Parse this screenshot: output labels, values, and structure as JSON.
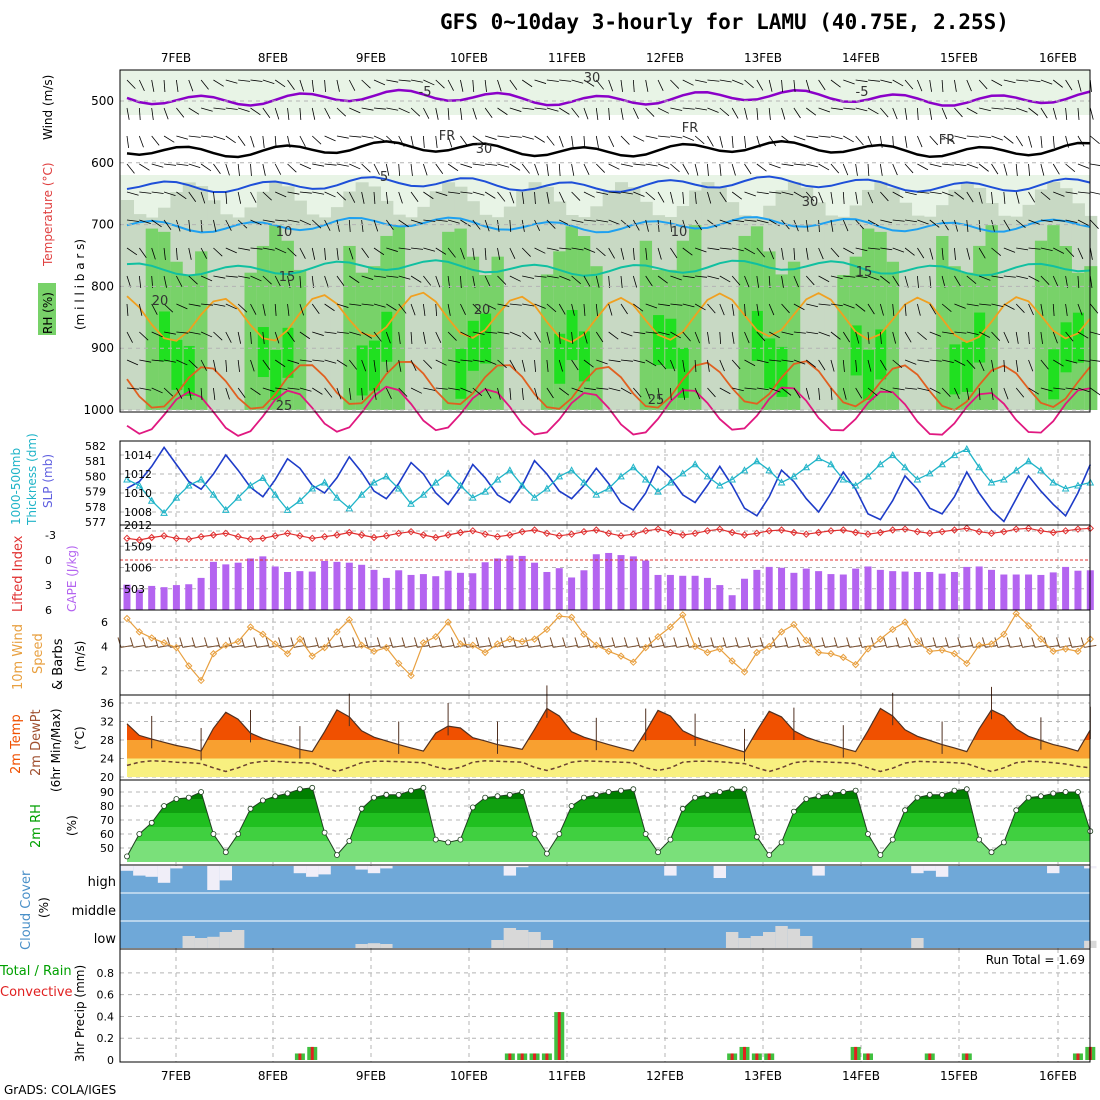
{
  "title": "GFS 0~10day 3-hourly for LAMU (40.75E, 2.25S)",
  "footer": "GrADS: COLA/IGES",
  "dates": [
    "7FEB",
    "8FEB",
    "9FEB",
    "10FEB",
    "11FEB",
    "12FEB",
    "13FEB",
    "14FEB",
    "15FEB",
    "16FEB"
  ],
  "colors": {
    "grid": "#b4b4b4",
    "rh_light": "#e8f4e6",
    "rh_mid": "#c8d9c4",
    "rh_dark": "#a9c8a5",
    "rh_green": "#78d269",
    "rh_bright": "#20e020",
    "t_m5": "#8a00c8",
    "t_fr": "#000000",
    "t_5": "#1e4fd8",
    "t_10": "#1ea0f0",
    "t_15": "#10c0a0",
    "t_20": "#f0a020",
    "t_25": "#e06020",
    "t_30": "#e01880",
    "slp": "#1e3cc8",
    "thick": "#20b4c8",
    "li": "#e03030",
    "cape": "#b464f0",
    "wind": "#e8a040",
    "barb": "#7a5030",
    "temp_top": "#f05000",
    "temp_mid": "#f8a030",
    "temp_low": "#f8f080",
    "dewpt": "#6a4030",
    "rh2m": "#00a000",
    "cloud_sky": "#6fa8d8",
    "cloud_gray": "#d8d8d8",
    "cloud_white": "#f0eef8",
    "precip_total": "#40c040",
    "precip_conv": "#e02020"
  },
  "panels": {
    "upper": {
      "ylabel_rh": "RH (%)",
      "ylabel_temp": "Temperature (°C)",
      "ylabel_wind": "Wind (m/s)",
      "ylabel_mb": "(m i l l i b a r s)",
      "levels": [
        "500",
        "600",
        "700",
        "800",
        "900",
        "1000"
      ],
      "contour_labels": [
        "-5",
        "-5",
        "FR",
        "FR",
        "FR",
        "5",
        "10",
        "10",
        "15",
        "15",
        "20",
        "20",
        "25",
        "25",
        "30",
        "30",
        "30"
      ]
    },
    "slp": {
      "ylabel_a": "1000-500mb",
      "ylabel_b": "Thickness (dm)",
      "ylabel_c": "SLP (mb)",
      "left_ticks": [
        "582",
        "581",
        "580",
        "579",
        "578",
        "577"
      ],
      "right_ticks": [
        "1014",
        "1012",
        "1010",
        "1008"
      ]
    },
    "cape": {
      "ylabel_a": "Lifted Index",
      "ylabel_b": "CAPE (J/kg)",
      "left_ticks": [
        "-3",
        "0",
        "3",
        "6"
      ],
      "right_ticks": [
        "2012",
        "1509",
        "1006",
        "503"
      ]
    },
    "wind": {
      "ylabel_a": "10m Wind",
      "ylabel_b": "Speed",
      "ylabel_c": "& Barbs",
      "unit": "(m/s)",
      "ticks": [
        "6",
        "4",
        "2"
      ]
    },
    "temp": {
      "ylabel_a": "2m Temp",
      "ylabel_b": "2m DewPt",
      "ylabel_c": "(6hr Min/Max)",
      "unit": "(°C)",
      "ticks": [
        "36",
        "32",
        "28",
        "24",
        "20"
      ]
    },
    "rh": {
      "ylabel": "2m RH",
      "unit": "(%)",
      "ticks": [
        "90",
        "80",
        "70",
        "60",
        "50"
      ]
    },
    "cloud": {
      "ylabel": "Cloud Cover",
      "unit": "(%)",
      "labels": [
        "high",
        "middle",
        "low"
      ]
    },
    "precip": {
      "ylabel_a": "Total / Rain",
      "ylabel_b": "Convective",
      "ylabel_c": "3hr Precip (mm)",
      "ticks": [
        "0.8",
        "0.6",
        "0.4",
        "0.2",
        "0"
      ],
      "run_total": "Run Total = 1.69"
    }
  },
  "chart_data": {
    "type": "line",
    "x_unit": "3-hourly time steps from 6FEB 12Z",
    "slp_mb": [
      1010.5,
      1011.2,
      1012.8,
      1014.8,
      1013.0,
      1011.2,
      1010.4,
      1012.0,
      1014.0,
      1012.4,
      1010.6,
      1009.6,
      1011.4,
      1013.6,
      1012.6,
      1010.8,
      1010.0,
      1011.6,
      1013.8,
      1012.2,
      1010.2,
      1009.4,
      1011.0,
      1013.2,
      1012.0,
      1010.0,
      1008.8,
      1010.6,
      1013.0,
      1011.6,
      1009.8,
      1009.0,
      1010.8,
      1013.4,
      1012.0,
      1010.2,
      1009.4,
      1010.8,
      1012.6,
      1011.0,
      1009.0,
      1008.2,
      1010.0,
      1012.8,
      1011.6,
      1009.8,
      1009.0,
      1010.8,
      1012.8,
      1010.8,
      1008.4,
      1007.6,
      1009.6,
      1012.4,
      1011.2,
      1009.4,
      1008.0,
      1010.0,
      1012.2,
      1010.4,
      1007.8,
      1007.2,
      1009.2,
      1011.8,
      1010.4,
      1008.4,
      1007.8,
      1009.6,
      1012.2,
      1010.0,
      1008.2,
      1007.0,
      1009.4,
      1011.8,
      1010.2,
      1008.8,
      1007.6,
      1010.0,
      1013.0
    ],
    "thickness_dm": [
      579.8,
      579.4,
      578.4,
      577.6,
      578.6,
      579.4,
      579.8,
      578.8,
      577.8,
      578.6,
      579.4,
      579.9,
      578.8,
      577.8,
      578.4,
      579.2,
      579.6,
      578.6,
      577.9,
      578.8,
      579.6,
      580.0,
      579.2,
      578.2,
      578.8,
      579.6,
      580.2,
      579.4,
      578.6,
      579.0,
      579.8,
      580.4,
      579.4,
      578.6,
      579.2,
      580.0,
      580.4,
      579.6,
      578.8,
      579.2,
      580.0,
      580.6,
      579.8,
      579.0,
      579.6,
      580.2,
      580.8,
      580.0,
      579.4,
      579.8,
      580.4,
      581.0,
      580.4,
      579.6,
      580.0,
      580.6,
      581.2,
      580.8,
      579.8,
      579.4,
      580.0,
      580.8,
      581.4,
      580.6,
      579.8,
      580.2,
      580.8,
      581.4,
      581.8,
      580.6,
      579.6,
      579.8,
      580.4,
      581.0,
      580.4,
      579.6,
      579.2,
      579.4,
      579.6
    ],
    "lifted_index": [
      -2.6,
      -2.4,
      -2.7,
      -2.9,
      -2.6,
      -2.5,
      -2.8,
      -3.0,
      -3.2,
      -2.8,
      -2.5,
      -2.6,
      -2.9,
      -3.2,
      -2.9,
      -2.6,
      -2.8,
      -3.0,
      -3.3,
      -3.0,
      -2.7,
      -2.9,
      -3.2,
      -3.4,
      -3.0,
      -2.7,
      -3.0,
      -3.3,
      -3.5,
      -3.1,
      -2.8,
      -3.0,
      -3.4,
      -3.6,
      -3.2,
      -2.9,
      -3.1,
      -3.4,
      -3.6,
      -3.2,
      -2.9,
      -3.1,
      -3.5,
      -3.7,
      -3.3,
      -3.0,
      -3.2,
      -3.5,
      -3.7,
      -3.3,
      -3.0,
      -3.2,
      -3.5,
      -3.6,
      -3.3,
      -3.1,
      -3.3,
      -3.5,
      -3.6,
      -3.3,
      -3.1,
      -3.3,
      -3.6,
      -3.7,
      -3.4,
      -3.2,
      -3.4,
      -3.6,
      -3.8,
      -3.4,
      -3.2,
      -3.4,
      -3.7,
      -3.8,
      -3.5,
      -3.3,
      -3.5,
      -3.7,
      -3.8
    ],
    "cape_jkg": [
      600,
      480,
      570,
      540,
      590,
      610,
      760,
      1140,
      1080,
      1120,
      1220,
      1270,
      1030,
      900,
      920,
      910,
      1160,
      1140,
      1120,
      1070,
      950,
      760,
      940,
      830,
      850,
      800,
      930,
      880,
      870,
      1130,
      1220,
      1290,
      1280,
      1120,
      900,
      990,
      770,
      940,
      1320,
      1350,
      1300,
      1270,
      1170,
      830,
      830,
      810,
      810,
      760,
      590,
      350,
      740,
      950,
      1020,
      1000,
      880,
      980,
      920,
      850,
      840,
      980,
      1030,
      950,
      920,
      910,
      900,
      900,
      860,
      900,
      1020,
      1030,
      950,
      840,
      840,
      840,
      830,
      890,
      1020,
      930,
      940
    ],
    "wind_speed_ms": [
      6.3,
      5.2,
      4.7,
      4.3,
      3.9,
      2.4,
      1.2,
      3.4,
      4.1,
      4.4,
      5.6,
      5.0,
      4.2,
      3.4,
      4.6,
      3.2,
      3.9,
      5.2,
      6.2,
      4.1,
      3.6,
      3.9,
      2.6,
      1.6,
      4.3,
      4.8,
      6.0,
      4.2,
      4.1,
      3.5,
      4.2,
      4.6,
      4.4,
      4.6,
      5.4,
      6.5,
      6.4,
      5.0,
      4.1,
      3.6,
      3.2,
      2.7,
      3.9,
      4.8,
      5.6,
      6.6,
      4.0,
      3.5,
      3.8,
      2.8,
      1.9,
      3.5,
      4.0,
      5.2,
      5.8,
      4.5,
      3.5,
      3.4,
      3.1,
      2.5,
      3.8,
      4.6,
      5.4,
      6.0,
      4.4,
      3.6,
      3.7,
      3.4,
      2.6,
      4.1,
      4.2,
      5.0,
      6.7,
      5.7,
      4.6,
      3.6,
      3.8,
      3.6,
      4.6
    ],
    "temp_c": [
      31.5,
      29.0,
      28.2,
      27.5,
      26.8,
      26.3,
      25.6,
      30.5,
      34.0,
      32.5,
      29.5,
      28.3,
      27.5,
      26.8,
      26.0,
      25.5,
      29.8,
      34.5,
      33.0,
      30.0,
      28.6,
      27.8,
      27.0,
      26.3,
      25.6,
      29.5,
      31.0,
      30.6,
      28.5,
      27.8,
      27.0,
      26.5,
      26.0,
      30.3,
      34.8,
      33.2,
      29.8,
      28.6,
      27.8,
      27.0,
      26.3,
      25.6,
      29.8,
      34.4,
      33.2,
      30.0,
      28.7,
      27.8,
      27.0,
      26.2,
      25.4,
      30.0,
      34.2,
      33.0,
      30.0,
      28.6,
      27.7,
      27.0,
      26.2,
      25.5,
      30.0,
      34.8,
      33.2,
      30.2,
      28.8,
      27.9,
      27.0,
      26.3,
      25.5,
      30.4,
      34.5,
      33.2,
      30.4,
      28.8,
      27.9,
      27.0,
      26.4,
      25.6,
      30.2
    ],
    "dewpt_c": [
      22.5,
      23.2,
      23.5,
      23.4,
      23.2,
      23.1,
      22.9,
      22.0,
      21.2,
      22.0,
      23.0,
      23.4,
      23.4,
      23.2,
      23.1,
      23.0,
      22.0,
      21.2,
      22.1,
      23.1,
      23.4,
      23.4,
      23.3,
      23.2,
      23.1,
      22.2,
      21.6,
      22.1,
      23.2,
      23.5,
      23.4,
      23.3,
      23.2,
      22.1,
      21.4,
      22.2,
      23.2,
      23.5,
      23.4,
      23.3,
      23.2,
      23.1,
      22.0,
      21.4,
      22.0,
      23.2,
      23.4,
      23.4,
      23.3,
      23.1,
      22.9,
      22.0,
      21.2,
      22.0,
      23.1,
      23.4,
      23.3,
      23.2,
      23.1,
      22.9,
      22.0,
      21.2,
      21.9,
      23.0,
      23.4,
      23.3,
      23.2,
      23.1,
      22.9,
      22.0,
      21.2,
      22.0,
      23.1,
      23.4,
      23.3,
      23.1,
      22.8,
      22.3,
      22.0
    ],
    "rh2m_pct": [
      44,
      60,
      68,
      80,
      85,
      86,
      90,
      60,
      47,
      60,
      78,
      84,
      87,
      89,
      92,
      93,
      61,
      45,
      55,
      78,
      86,
      88,
      88,
      91,
      93,
      56,
      54,
      56,
      79,
      86,
      87,
      88,
      90,
      60,
      46,
      60,
      80,
      86,
      88,
      90,
      91,
      92,
      60,
      47,
      56,
      78,
      86,
      88,
      90,
      92,
      92,
      58,
      45,
      54,
      76,
      85,
      87,
      89,
      90,
      91,
      60,
      45,
      56,
      77,
      86,
      88,
      88,
      91,
      92,
      56,
      47,
      54,
      77,
      86,
      87,
      89,
      90,
      90,
      62
    ],
    "precip_total_mm": [
      0,
      0,
      0,
      0,
      0,
      0,
      0,
      0,
      0,
      0,
      0,
      0,
      0,
      0,
      0.06,
      0.12,
      0,
      0,
      0,
      0,
      0,
      0,
      0,
      0,
      0,
      0,
      0,
      0,
      0,
      0,
      0,
      0.06,
      0.06,
      0.06,
      0.06,
      0.44,
      0,
      0,
      0,
      0,
      0,
      0,
      0,
      0,
      0,
      0,
      0,
      0,
      0,
      0.06,
      0.12,
      0.06,
      0.06,
      0,
      0,
      0,
      0,
      0,
      0,
      0.12,
      0.06,
      0,
      0,
      0,
      0,
      0.06,
      0,
      0,
      0.06,
      0,
      0,
      0,
      0,
      0,
      0,
      0,
      0,
      0.06,
      0.12
    ],
    "precip_conv_mm": [
      0,
      0,
      0,
      0,
      0,
      0,
      0,
      0,
      0,
      0,
      0,
      0,
      0,
      0,
      0.06,
      0.12,
      0,
      0,
      0,
      0,
      0,
      0,
      0,
      0,
      0,
      0,
      0,
      0,
      0,
      0,
      0,
      0.06,
      0.06,
      0.06,
      0.06,
      0.44,
      0,
      0,
      0,
      0,
      0,
      0,
      0,
      0,
      0,
      0,
      0,
      0,
      0,
      0.06,
      0.12,
      0.06,
      0.06,
      0,
      0,
      0,
      0,
      0,
      0,
      0.12,
      0.06,
      0,
      0,
      0,
      0,
      0.06,
      0,
      0,
      0.06,
      0,
      0,
      0,
      0,
      0,
      0,
      0,
      0,
      0.06,
      0.12
    ],
    "cloud_low_pct": [
      0,
      0,
      0,
      0,
      0,
      30,
      25,
      28,
      40,
      45,
      0,
      0,
      0,
      0,
      0,
      0,
      0,
      0,
      0,
      10,
      12,
      10,
      0,
      0,
      0,
      0,
      0,
      0,
      0,
      0,
      20,
      50,
      45,
      40,
      20,
      0,
      0,
      0,
      0,
      0,
      0,
      0,
      0,
      0,
      0,
      0,
      0,
      0,
      0,
      40,
      25,
      30,
      40,
      55,
      48,
      30,
      0,
      0,
      0,
      0,
      0,
      0,
      0,
      0,
      25,
      0,
      0,
      0,
      0,
      0,
      0,
      0,
      0,
      0,
      0,
      0,
      0,
      0,
      18
    ],
    "cloud_high_pct": [
      80,
      60,
      55,
      30,
      90,
      100,
      100,
      0,
      40,
      100,
      100,
      100,
      100,
      100,
      70,
      55,
      65,
      100,
      100,
      85,
      70,
      90,
      100,
      100,
      100,
      100,
      100,
      100,
      100,
      100,
      100,
      60,
      95,
      100,
      100,
      100,
      100,
      100,
      100,
      100,
      100,
      100,
      100,
      100,
      60,
      100,
      100,
      100,
      50,
      100,
      100,
      100,
      100,
      100,
      100,
      100,
      60,
      100,
      100,
      100,
      100,
      100,
      100,
      100,
      70,
      80,
      55,
      100,
      100,
      100,
      100,
      100,
      100,
      100,
      100,
      70,
      100,
      100,
      90
    ]
  }
}
